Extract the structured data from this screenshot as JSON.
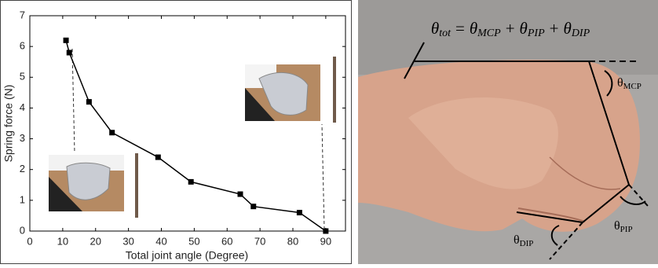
{
  "chart_data": {
    "type": "line",
    "xlabel": "Total joint angle (Degree)",
    "ylabel": "Spring force (N)",
    "x": [
      11,
      12,
      18,
      25,
      39,
      49,
      64,
      68,
      82,
      90
    ],
    "series": [
      {
        "color": "#000000",
        "values": [
          6.2,
          5.8,
          4.2,
          3.2,
          2.4,
          1.6,
          1.2,
          0.8,
          0.6,
          0.0
        ]
      }
    ],
    "xlim": [
      0,
      96
    ],
    "xticks": [
      0,
      10,
      20,
      30,
      40,
      50,
      60,
      70,
      80,
      90
    ],
    "ylim": [
      0,
      7
    ],
    "yticks": [
      0,
      1,
      2,
      3,
      4,
      5,
      6,
      7
    ],
    "grid": false
  },
  "photo": {
    "equation_terms": [
      {
        "symbol": "θ",
        "subscript": "tot"
      },
      {
        "symbol": "θ",
        "subscript": "MCP"
      },
      {
        "symbol": "θ",
        "subscript": "PIP"
      },
      {
        "symbol": "θ",
        "subscript": "DIP"
      }
    ],
    "equation_operators": [
      "=",
      "+",
      "+"
    ],
    "angle_labels": [
      {
        "symbol": "θ",
        "subscript": "MCP"
      },
      {
        "symbol": "θ",
        "subscript": "PIP"
      },
      {
        "symbol": "θ",
        "subscript": "DIP"
      }
    ]
  }
}
